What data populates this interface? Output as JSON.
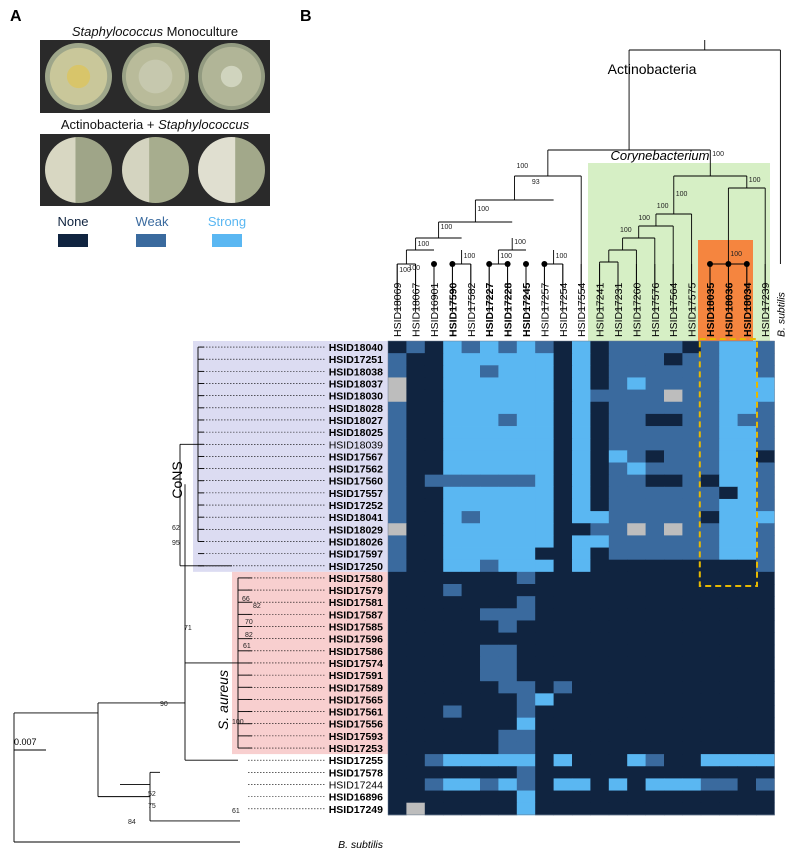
{
  "panel_a": {
    "letter": "A",
    "monoculture_pre": "Staphylococcus",
    "monoculture_post": " Monoculture",
    "coculture_pre": "Actinobacteria + ",
    "coculture_post": "Staphylococcus",
    "legend": [
      {
        "label": "None",
        "color": "#102440"
      },
      {
        "label": "Weak",
        "color": "#3a6a9e"
      },
      {
        "label": "Strong",
        "color": "#5ab7f2"
      }
    ]
  },
  "panel_b": {
    "letter": "B",
    "clade_actinobacteria": "Actinobacteria",
    "clade_corynebacterium": "Corynebacterium",
    "clade_cons": "CoNS",
    "clade_saureus_pre": "S.",
    "clade_saureus_post": " aureus",
    "outgroup_top": "B. subtilis",
    "outgroup_left": "B. subtilis",
    "scale_label": "0.007",
    "top_bootstraps": [
      "100",
      "93",
      "100",
      "100",
      "100",
      "100",
      "100",
      "100",
      "100",
      "100",
      "100",
      "100",
      "100",
      "100",
      "100",
      "100",
      "100",
      "100"
    ],
    "left_bootstraps": [
      "62",
      "95",
      "66",
      "82",
      "70",
      "82",
      "61",
      "71",
      "100",
      "90",
      "61",
      "52",
      "75",
      "84"
    ],
    "columns": [
      {
        "label": "HSID18069",
        "bold": false
      },
      {
        "label": "HSID18067",
        "bold": false
      },
      {
        "label": "HSID16901",
        "bold": false
      },
      {
        "label": "HSID17590",
        "bold": true
      },
      {
        "label": "HSID17582",
        "bold": false
      },
      {
        "label": "HSID17227",
        "bold": true
      },
      {
        "label": "HSID17228",
        "bold": true
      },
      {
        "label": "HSID17245",
        "bold": true
      },
      {
        "label": "HSID17257",
        "bold": false
      },
      {
        "label": "HSID17254",
        "bold": false
      },
      {
        "label": "HSID17554",
        "bold": false
      },
      {
        "label": "HSID17241",
        "bold": false
      },
      {
        "label": "HSID17231",
        "bold": false
      },
      {
        "label": "HSID17260",
        "bold": false
      },
      {
        "label": "HSID17576",
        "bold": false
      },
      {
        "label": "HSID17564",
        "bold": false
      },
      {
        "label": "HSID17575",
        "bold": false
      },
      {
        "label": "HSID18035",
        "bold": true
      },
      {
        "label": "HSID18036",
        "bold": true
      },
      {
        "label": "HSID18034",
        "bold": true
      },
      {
        "label": "HSID17239",
        "bold": false
      }
    ],
    "rows": [
      {
        "label": "HSID18040",
        "bold": true,
        "cells": "NWNSWSWSWNSNWWWWNWSSW"
      },
      {
        "label": "HSID17251",
        "bold": true,
        "cells": "WNNSSSSSSNSNWWWNWWSSW"
      },
      {
        "label": "HSID18038",
        "bold": true,
        "cells": "WNNSSWSSSNSNWWWWWWSSW"
      },
      {
        "label": "HSID18037",
        "bold": true,
        "cells": "GNNSSSSSSNSNWSWWWWSSS"
      },
      {
        "label": "HSID18030",
        "bold": true,
        "cells": "GNNSSSSSSNSWWWWGWWSSS"
      },
      {
        "label": "HSID18028",
        "bold": true,
        "cells": "WNNSSSSSSNSNWWWWWWSSW"
      },
      {
        "label": "HSID18027",
        "bold": true,
        "cells": "WNNSSSWSSNSNWWNNWWSWW"
      },
      {
        "label": "HSID18025",
        "bold": true,
        "cells": "WNNSSSSSSNSNWWWWWWSSW"
      },
      {
        "label": "HSID18039",
        "bold": false,
        "cells": "WNNSSSSSSNSNWWWWWWSSW"
      },
      {
        "label": "HSID17567",
        "bold": true,
        "cells": "WNNSSSSSSNSNSWNWWWSSN"
      },
      {
        "label": "HSID17562",
        "bold": true,
        "cells": "WNNSSSSSSNSNWSWWWWSSW"
      },
      {
        "label": "HSID17560",
        "bold": true,
        "cells": "WNWWWWWWSNSNWWNNWNSSW"
      },
      {
        "label": "HSID17557",
        "bold": true,
        "cells": "WNNSSSSSSNSNWWWWWWNSW"
      },
      {
        "label": "HSID17252",
        "bold": true,
        "cells": "WNNSSSSSSNSNWWWWWWSSW"
      },
      {
        "label": "HSID18041",
        "bold": true,
        "cells": "WNNSWSSSSNSSWWWWWNSSS"
      },
      {
        "label": "HSID18029",
        "bold": true,
        "cells": "GNNSSSSSSNNWWGWGWWSSW"
      },
      {
        "label": "HSID18026",
        "bold": true,
        "cells": "WNNSSSSSSNSSWWWWWWSSW"
      },
      {
        "label": "HSID17597",
        "bold": true,
        "cells": "WNNSSSSSNNSNWWWWWWSSW"
      },
      {
        "label": "HSID17250",
        "bold": true,
        "cells": "WNNSSWSSSNSNNNNNNNNNW"
      },
      {
        "label": "HSID17580",
        "bold": true,
        "cells": "NNNNNNNWNNNNNNNNNNNNN"
      },
      {
        "label": "HSID17579",
        "bold": true,
        "cells": "NNNWNNNNNNNNNNNNNNNNN"
      },
      {
        "label": "HSID17581",
        "bold": true,
        "cells": "NNNNNNNWNNNNNNNNNNNNN"
      },
      {
        "label": "HSID17587",
        "bold": true,
        "cells": "NNNNNWWWNNNNNNNNNNNNN"
      },
      {
        "label": "HSID17585",
        "bold": true,
        "cells": "NNNNNNWNNNNNNNNNNNNNN"
      },
      {
        "label": "HSID17596",
        "bold": true,
        "cells": "NNNNNNNNNNNNNNNNNNNNN"
      },
      {
        "label": "HSID17586",
        "bold": true,
        "cells": "NNNNNWWNNNNNNNNNNNNNN"
      },
      {
        "label": "HSID17574",
        "bold": true,
        "cells": "NNNNNWWNNNNNNNNNNNNNN"
      },
      {
        "label": "HSID17591",
        "bold": true,
        "cells": "NNNNNWWNNNNNNNNNNNNNN"
      },
      {
        "label": "HSID17589",
        "bold": true,
        "cells": "NNNNNNWWNWNNNNNNNNNNN"
      },
      {
        "label": "HSID17565",
        "bold": true,
        "cells": "NNNNNNNWSNNNNNNNNNNNN"
      },
      {
        "label": "HSID17561",
        "bold": true,
        "cells": "NNNWNNNWNNNNNNNNNNNNN"
      },
      {
        "label": "HSID17556",
        "bold": true,
        "cells": "NNNNNNNSNNNNNNNNNNNNN"
      },
      {
        "label": "HSID17593",
        "bold": true,
        "cells": "NNNNNNWWNNNNNNNNNNNNN"
      },
      {
        "label": "HSID17253",
        "bold": true,
        "cells": "NNNNNNWWNNNNNNNNNNNNN"
      },
      {
        "label": "HSID17255",
        "bold": true,
        "cells": "NNWSSSSSNSNNNSWNNSSSS"
      },
      {
        "label": "HSID17578",
        "bold": true,
        "cells": "NNNNNNNWNNNNNNNNNNNNN"
      },
      {
        "label": "HSID17244",
        "bold": false,
        "cells": "NNWSSWSWNSSNSNSSSWWNW"
      },
      {
        "label": "HSID16896",
        "bold": true,
        "cells": "NNNNNNNSNNNNNNNNNNNNN"
      },
      {
        "label": "HSID17249",
        "bold": true,
        "cells": "NGNNNNNSNNNNNNNNNNNNN"
      }
    ],
    "colors": {
      "none": "#102440",
      "weak": "#3a6a9e",
      "strong": "#5ab7f2",
      "missing": "#bdbdbd",
      "cons_bg": "#dcdcf2",
      "saureus_bg": "#f8cfcf",
      "coryne_bg": "#d6efc5",
      "highlight": "#f5853f",
      "dashed_box": "#e8b900"
    }
  }
}
